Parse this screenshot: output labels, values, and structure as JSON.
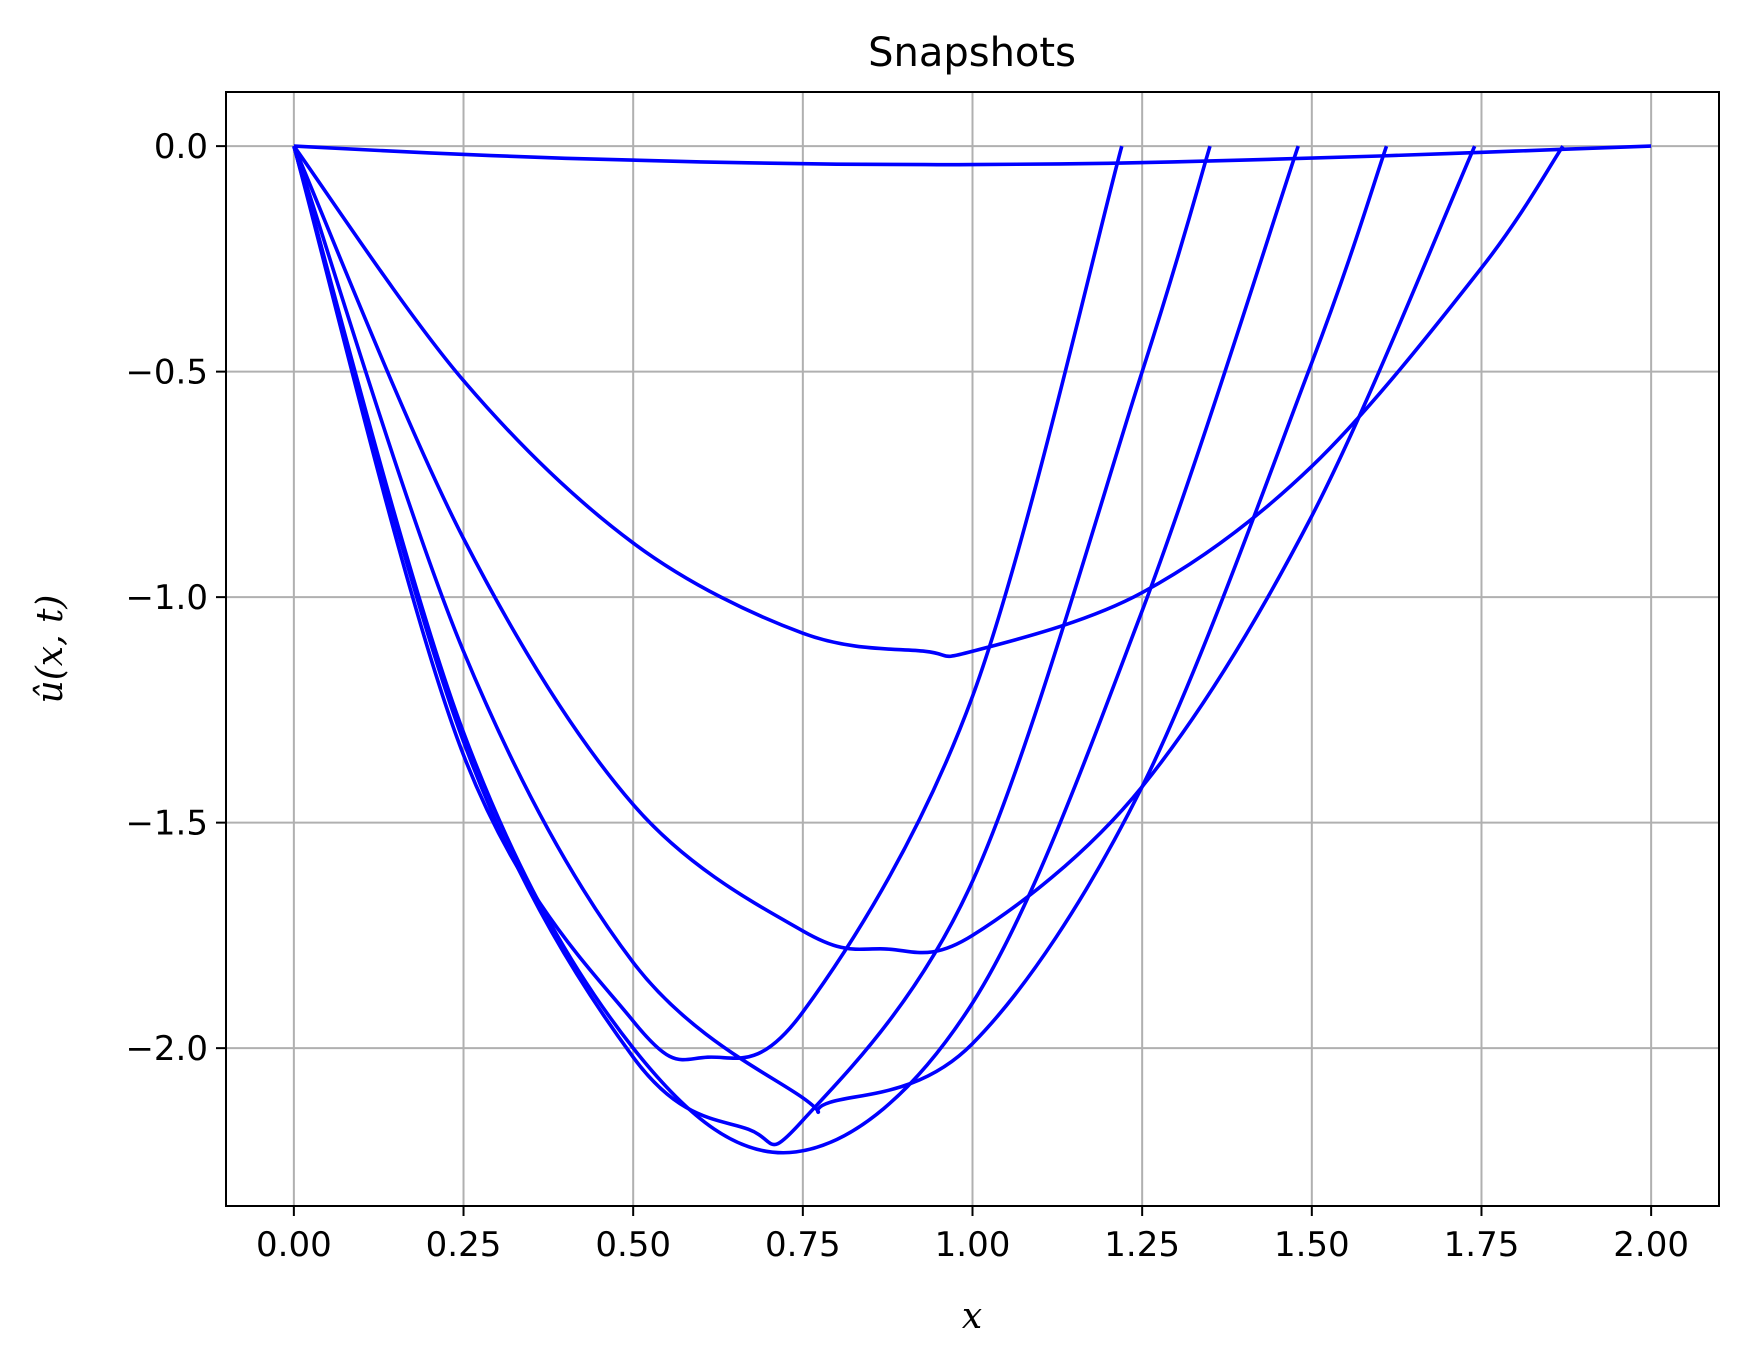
{
  "chart_data": {
    "type": "line",
    "title": "Snapshots",
    "xlabel": "x",
    "ylabel": "û(x, t)",
    "xlim": [
      -0.1,
      2.1
    ],
    "ylim": [
      -2.35,
      0.12
    ],
    "xticks": [
      0.0,
      0.25,
      0.5,
      0.75,
      1.0,
      1.25,
      1.5,
      1.75,
      2.0
    ],
    "xtick_labels": [
      "0.00",
      "0.25",
      "0.50",
      "0.75",
      "1.00",
      "1.25",
      "1.50",
      "1.75",
      "2.00"
    ],
    "yticks": [
      0.0,
      -0.5,
      -1.0,
      -1.5,
      -2.0
    ],
    "ytick_labels": [
      "0.0",
      "−0.5",
      "−1.0",
      "−1.5",
      "−2.0"
    ],
    "grid": true,
    "line_color": "#0000ff",
    "series": [
      {
        "x": [
          0.0,
          0.2,
          0.4,
          0.6,
          0.8,
          0.93,
          1.0,
          1.2,
          1.4,
          1.6,
          1.8,
          2.0
        ],
        "y": [
          0.0,
          -0.015,
          -0.027,
          -0.035,
          -0.04,
          -0.041,
          -0.041,
          -0.038,
          -0.031,
          -0.022,
          -0.011,
          0.0
        ]
      },
      {
        "x": [
          0.0,
          0.25,
          0.5,
          0.75,
          0.93,
          1.0,
          1.25,
          1.5,
          1.75,
          1.87
        ],
        "y": [
          0.0,
          -0.52,
          -0.88,
          -1.08,
          -1.12,
          -1.12,
          -0.99,
          -0.71,
          -0.27,
          0.0
        ]
      },
      {
        "x": [
          0.0,
          0.25,
          0.5,
          0.75,
          0.87,
          1.0,
          1.25,
          1.5,
          1.74
        ],
        "y": [
          0.0,
          -0.87,
          -1.46,
          -1.74,
          -1.78,
          -1.75,
          -1.42,
          -0.82,
          0.0
        ]
      },
      {
        "x": [
          0.0,
          0.25,
          0.5,
          0.75,
          0.79,
          1.0,
          1.25,
          1.5,
          1.61
        ],
        "y": [
          0.0,
          -1.12,
          -1.81,
          -2.11,
          -2.12,
          -1.99,
          -1.42,
          -0.48,
          0.0
        ]
      },
      {
        "x": [
          0.0,
          0.25,
          0.5,
          0.74,
          1.0,
          1.25,
          1.48
        ],
        "y": [
          0.0,
          -1.3,
          -2.0,
          -2.23,
          -1.9,
          -1.03,
          0.0
        ]
      },
      {
        "x": [
          0.0,
          0.25,
          0.5,
          0.67,
          0.75,
          1.0,
          1.25,
          1.35
        ],
        "y": [
          0.0,
          -1.32,
          -2.02,
          -2.18,
          -2.16,
          -1.63,
          -0.5,
          0.0
        ]
      },
      {
        "x": [
          0.0,
          0.25,
          0.5,
          0.61,
          0.75,
          1.0,
          1.22
        ],
        "y": [
          0.0,
          -1.35,
          -1.94,
          -2.02,
          -1.92,
          -1.22,
          0.0
        ]
      }
    ]
  }
}
